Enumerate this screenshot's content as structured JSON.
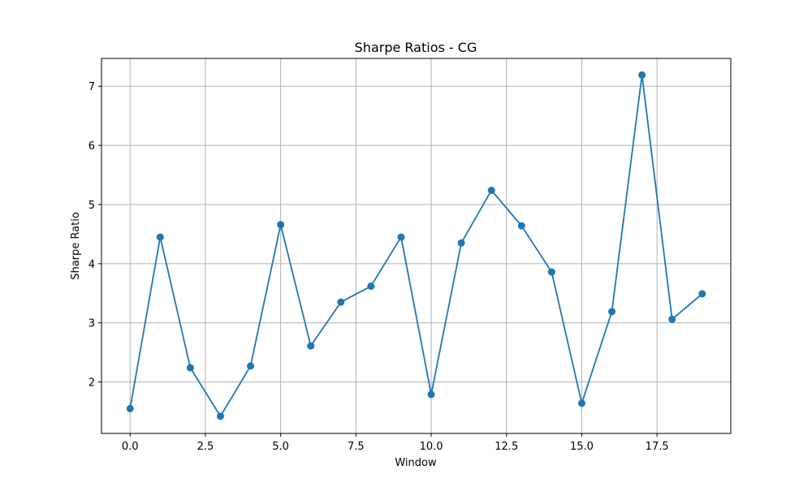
{
  "chart_data": {
    "type": "line",
    "title": "Sharpe Ratios - CG",
    "xlabel": "Window",
    "ylabel": "Sharpe Ratio",
    "xlim": [
      -0.95,
      19.95
    ],
    "ylim": [
      1.13,
      7.47
    ],
    "x_ticks": [
      0,
      2.5,
      5,
      7.5,
      10,
      12.5,
      15,
      17.5
    ],
    "x_tick_labels": [
      "0.0",
      "2.5",
      "5.0",
      "7.5",
      "10.0",
      "12.5",
      "15.0",
      "17.5"
    ],
    "y_ticks": [
      2,
      3,
      4,
      5,
      6,
      7
    ],
    "y_tick_labels": [
      "2",
      "3",
      "4",
      "5",
      "6",
      "7"
    ],
    "grid": true,
    "marker": "circle",
    "color": "#1f77b4",
    "series": [
      {
        "x": [
          0,
          1,
          2,
          3,
          4,
          5,
          6,
          7,
          8,
          9,
          10,
          11,
          12,
          13,
          14,
          15,
          16,
          17,
          18,
          19
        ],
        "values": [
          1.55,
          4.45,
          2.24,
          1.42,
          2.27,
          4.66,
          2.61,
          3.35,
          3.62,
          4.45,
          1.79,
          4.35,
          5.24,
          4.64,
          3.86,
          1.64,
          3.19,
          7.19,
          3.06,
          3.49
        ]
      }
    ]
  }
}
